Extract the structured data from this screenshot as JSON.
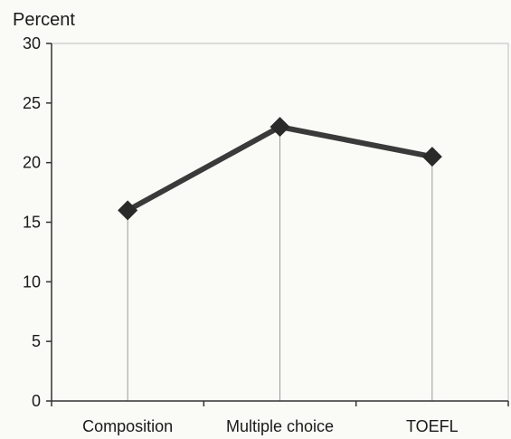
{
  "chart_data": {
    "type": "line",
    "ylabel": "Percent",
    "xlabel": "",
    "title": "",
    "categories": [
      "Composition",
      "Multiple choice",
      "TOEFL"
    ],
    "series": [
      {
        "values": [
          16,
          23,
          20.5
        ]
      }
    ],
    "ylim": [
      0,
      30
    ],
    "yticks": [
      0,
      5,
      10,
      15,
      20,
      25,
      30
    ],
    "grid": false,
    "drop_lines": true,
    "marker": "diamond",
    "colors": {
      "line": "#3a3a3a",
      "marker": "#2a2a2a",
      "axis": "#333333",
      "plot_border": "#bdbdbd",
      "drop_line": "#9a9a9a",
      "background": "#fafaf6"
    }
  }
}
